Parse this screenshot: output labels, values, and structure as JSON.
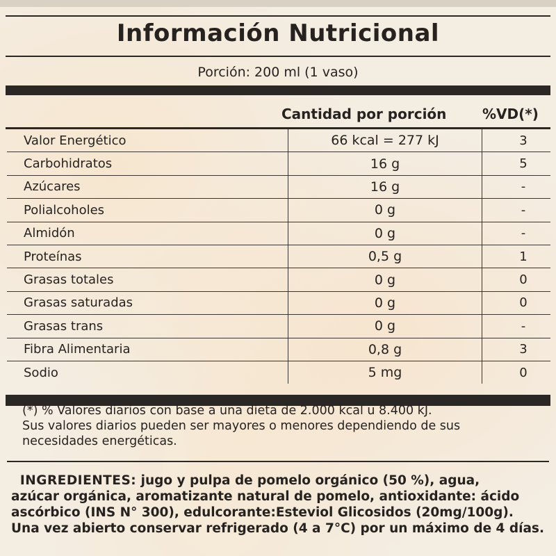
{
  "label": {
    "title": "Información Nutricional",
    "serving": "Porción: 200 ml (1 vaso)",
    "col_amount": "Cantidad por porción",
    "col_dv": "%VD(*)",
    "rows": [
      {
        "name": "Valor Energético",
        "amount": "66 kcal = 277 kJ",
        "dv": "3"
      },
      {
        "name": "Carbohidratos",
        "amount": "16 g",
        "dv": "5"
      },
      {
        "name": "Azúcares",
        "amount": "16 g",
        "dv": "-"
      },
      {
        "name": "Polialcoholes",
        "amount": "0 g",
        "dv": "-"
      },
      {
        "name": "Almidón",
        "amount": "0 g",
        "dv": "-"
      },
      {
        "name": "Proteínas",
        "amount": "0,5 g",
        "dv": "1"
      },
      {
        "name": "Grasas totales",
        "amount": "0 g",
        "dv": "0"
      },
      {
        "name": "Grasas saturadas",
        "amount": "0 g",
        "dv": "0"
      },
      {
        "name": "Grasas trans",
        "amount": "0 g",
        "dv": "-"
      },
      {
        "name": "Fibra Alimentaria",
        "amount": "0,8 g",
        "dv": "3"
      },
      {
        "name": "Sodio",
        "amount": "5 mg",
        "dv": "0"
      }
    ],
    "footnote_lines": [
      "(*) % Valores diarios con base a una dieta de 2.000 kcal u 8.400 kJ.",
      "Sus valores diarios pueden ser mayores o menores dependiendo de sus",
      "necesidades energéticas."
    ]
  },
  "ingredients": {
    "heading": "INGREDIENTES:",
    "line1_rest": " jugo y pulpa de pomelo orgánico (50 %), agua,",
    "line2": "azúcar orgánica, aromatizante natural de pomelo, antioxidante: ácido",
    "line3": "ascórbico (INS N° 300), edulcorante:Esteviol Glicosidos (20mg/100g).",
    "line4": "Una vez abierto conservar refrigerado (4 a 7°C)  por un máximo de 4 días."
  }
}
